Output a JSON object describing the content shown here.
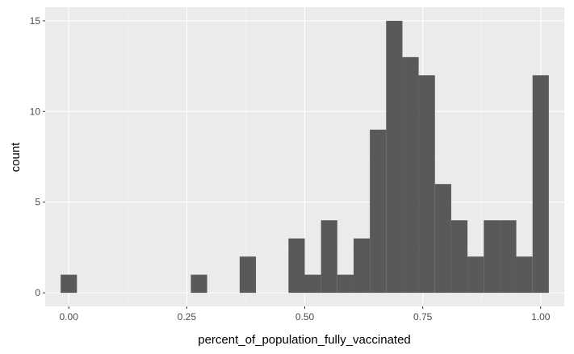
{
  "chart_data": {
    "type": "bar",
    "subtype": "histogram",
    "title": "",
    "xlabel": "percent_of_population_fully_vaccinated",
    "ylabel": "count",
    "xlim": [
      -0.05,
      1.05
    ],
    "ylim": [
      -0.75,
      15.75
    ],
    "x_ticks": [
      0.0,
      0.25,
      0.5,
      0.75,
      1.0
    ],
    "x_tick_labels": [
      "0.00",
      "0.25",
      "0.50",
      "0.75",
      "1.00"
    ],
    "y_ticks": [
      0,
      5,
      10,
      15
    ],
    "y_tick_labels": [
      "0",
      "5",
      "10",
      "15"
    ],
    "grid": true,
    "bin_width": 0.0345,
    "bins": [
      {
        "x": 0.0,
        "count": 1
      },
      {
        "x": 0.0345,
        "count": 0
      },
      {
        "x": 0.069,
        "count": 0
      },
      {
        "x": 0.1034,
        "count": 0
      },
      {
        "x": 0.1379,
        "count": 0
      },
      {
        "x": 0.1724,
        "count": 0
      },
      {
        "x": 0.2069,
        "count": 0
      },
      {
        "x": 0.2414,
        "count": 0
      },
      {
        "x": 0.2759,
        "count": 1
      },
      {
        "x": 0.3103,
        "count": 0
      },
      {
        "x": 0.3448,
        "count": 0
      },
      {
        "x": 0.3793,
        "count": 2
      },
      {
        "x": 0.4138,
        "count": 0
      },
      {
        "x": 0.4483,
        "count": 0
      },
      {
        "x": 0.4828,
        "count": 3
      },
      {
        "x": 0.5172,
        "count": 1
      },
      {
        "x": 0.5517,
        "count": 4
      },
      {
        "x": 0.5862,
        "count": 1
      },
      {
        "x": 0.6207,
        "count": 3
      },
      {
        "x": 0.6552,
        "count": 9
      },
      {
        "x": 0.6897,
        "count": 15
      },
      {
        "x": 0.7241,
        "count": 13
      },
      {
        "x": 0.7586,
        "count": 12
      },
      {
        "x": 0.7931,
        "count": 6
      },
      {
        "x": 0.8276,
        "count": 4
      },
      {
        "x": 0.8621,
        "count": 2
      },
      {
        "x": 0.8966,
        "count": 4
      },
      {
        "x": 0.931,
        "count": 4
      },
      {
        "x": 0.9655,
        "count": 2
      },
      {
        "x": 1.0,
        "count": 12
      }
    ],
    "colors": {
      "bar_fill": "#595959",
      "panel_background": "#ebebeb",
      "grid_major": "#ffffff",
      "grid_minor": "#f5f5f5",
      "tick_text": "#4d4d4d",
      "axis_title": "#000000"
    }
  }
}
